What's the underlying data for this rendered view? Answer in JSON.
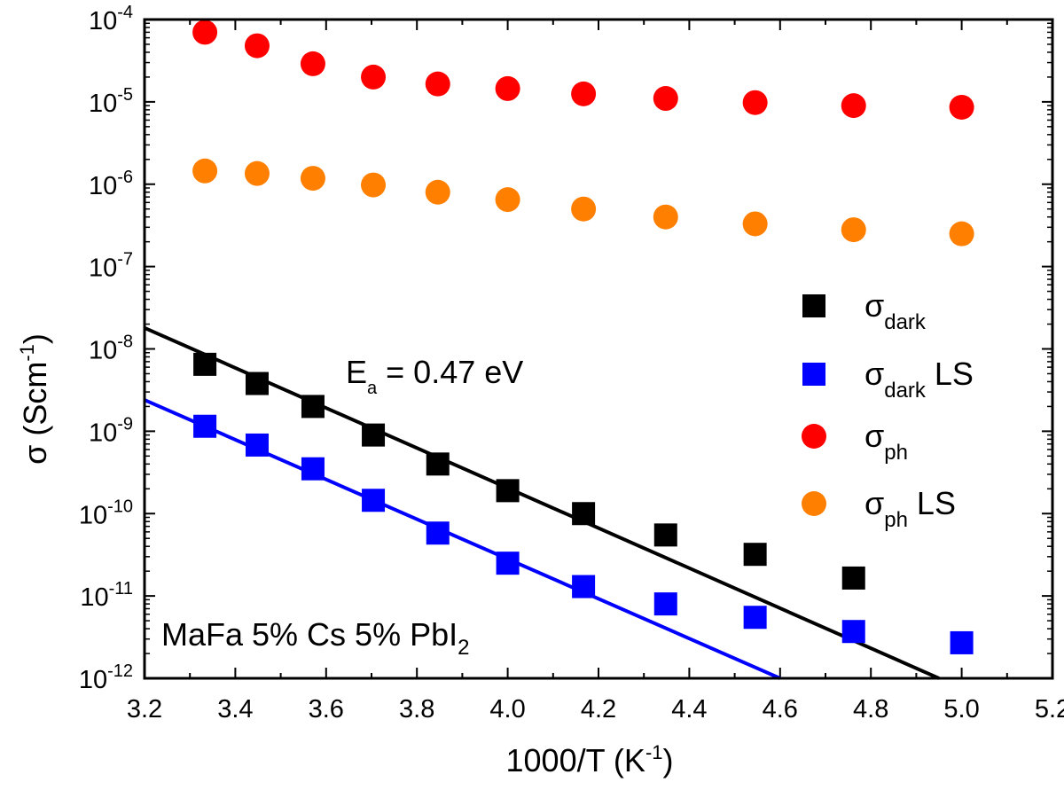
{
  "chart_data": {
    "type": "scatter",
    "title": "",
    "xlabel": {
      "text": "1000/T (K",
      "sup": "-1",
      "close": ")"
    },
    "ylabel": {
      "text": "σ (Scm",
      "sup": "-1",
      "close": ")"
    },
    "xlim": [
      3.2,
      5.2
    ],
    "ylim_log10": [
      -12,
      -4
    ],
    "yscale": "log",
    "x_ticks": [
      "3.2",
      "3.4",
      "3.6",
      "3.8",
      "4.0",
      "4.2",
      "4.4",
      "4.6",
      "4.8",
      "5.0",
      "5.2"
    ],
    "y_ticks": [
      {
        "base": "10",
        "exp": "-4"
      },
      {
        "base": "10",
        "exp": "-5"
      },
      {
        "base": "10",
        "exp": "-6"
      },
      {
        "base": "10",
        "exp": "-7"
      },
      {
        "base": "10",
        "exp": "-8"
      },
      {
        "base": "10",
        "exp": "-9"
      },
      {
        "base": "10",
        "exp": "-10"
      },
      {
        "base": "10",
        "exp": "-11"
      },
      {
        "base": "10",
        "exp": "-12"
      }
    ],
    "x": [
      3.333,
      3.448,
      3.571,
      3.704,
      3.846,
      4.0,
      4.167,
      4.348,
      4.545,
      4.762,
      5.0
    ],
    "series": [
      {
        "key": "dark",
        "marker": "square",
        "color": "#000000",
        "label": {
          "main": "σ",
          "sub": "dark",
          "suffix": ""
        },
        "values": [
          6.5e-09,
          3.8e-09,
          2e-09,
          9e-10,
          4e-10,
          1.9e-10,
          1e-10,
          5.5e-11,
          3.2e-11,
          1.65e-11,
          null
        ]
      },
      {
        "key": "dark-ls",
        "marker": "square",
        "color": "#0000ff",
        "label": {
          "main": "σ",
          "sub": "dark",
          "suffix": " LS"
        },
        "values": [
          1.15e-09,
          6.8e-10,
          3.5e-10,
          1.45e-10,
          5.8e-11,
          2.5e-11,
          1.3e-11,
          8e-12,
          5.5e-12,
          3.7e-12,
          2.7e-12
        ]
      },
      {
        "key": "ph",
        "marker": "circle",
        "color": "#ff0000",
        "label": {
          "main": "σ",
          "sub": "ph",
          "suffix": ""
        },
        "values": [
          7e-05,
          4.8e-05,
          2.9e-05,
          2e-05,
          1.65e-05,
          1.45e-05,
          1.25e-05,
          1.1e-05,
          9.8e-06,
          9e-06,
          8.6e-06
        ]
      },
      {
        "key": "ph-ls",
        "marker": "circle",
        "color": "#ff8000",
        "label": {
          "main": "σ",
          "sub": "ph",
          "suffix": " LS"
        },
        "values": [
          1.45e-06,
          1.35e-06,
          1.18e-06,
          9.8e-07,
          8e-07,
          6.5e-07,
          5e-07,
          4e-07,
          3.3e-07,
          2.8e-07,
          2.5e-07
        ]
      }
    ],
    "fit_lines": [
      {
        "key": "dark-fit",
        "color": "#000000",
        "x": [
          3.2,
          4.95
        ],
        "y": [
          1.8e-08,
          1e-12
        ]
      },
      {
        "key": "dark-ls-fit",
        "color": "#0000ff",
        "x": [
          3.2,
          4.6
        ],
        "y": [
          2.4e-09,
          1e-12
        ]
      }
    ],
    "annotations": {
      "activation": {
        "base": "E",
        "sub": "a",
        "rest": " = 0.47 eV"
      },
      "sample": {
        "text": "MaFa 5% Cs 5% PbI",
        "sub": "2"
      }
    },
    "legend_position": "right-middle"
  }
}
